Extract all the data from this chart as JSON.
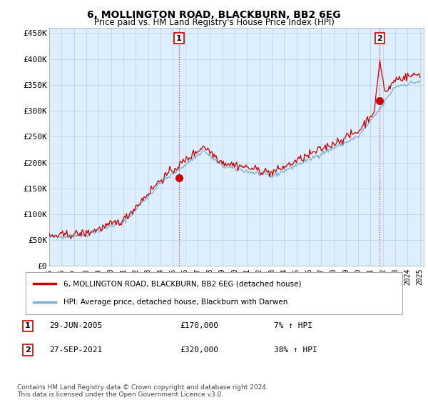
{
  "title": "6, MOLLINGTON ROAD, BLACKBURN, BB2 6EG",
  "subtitle": "Price paid vs. HM Land Registry's House Price Index (HPI)",
  "ylabel_ticks": [
    "£0",
    "£50K",
    "£100K",
    "£150K",
    "£200K",
    "£250K",
    "£300K",
    "£350K",
    "£400K",
    "£450K"
  ],
  "ytick_values": [
    0,
    50000,
    100000,
    150000,
    200000,
    250000,
    300000,
    350000,
    400000,
    450000
  ],
  "ylim": [
    0,
    460000
  ],
  "year_start": 1995,
  "year_end": 2025,
  "marker1_year": 2005.5,
  "marker1_value": 170000,
  "marker2_year": 2021.75,
  "marker2_value": 320000,
  "legend_label1": "6, MOLLINGTON ROAD, BLACKBURN, BB2 6EG (detached house)",
  "legend_label2": "HPI: Average price, detached house, Blackburn with Darwen",
  "annotation1_date": "29-JUN-2005",
  "annotation1_price": "£170,000",
  "annotation1_hpi": "7% ↑ HPI",
  "annotation2_date": "27-SEP-2021",
  "annotation2_price": "£320,000",
  "annotation2_hpi": "38% ↑ HPI",
  "footer": "Contains HM Land Registry data © Crown copyright and database right 2024.\nThis data is licensed under the Open Government Licence v3.0.",
  "line1_color": "#cc0000",
  "line2_color": "#7bafd4",
  "marker_line_color": "#cc0000",
  "chart_bg_color": "#ddeeff",
  "background_color": "#ffffff",
  "grid_color": "#bbccdd"
}
